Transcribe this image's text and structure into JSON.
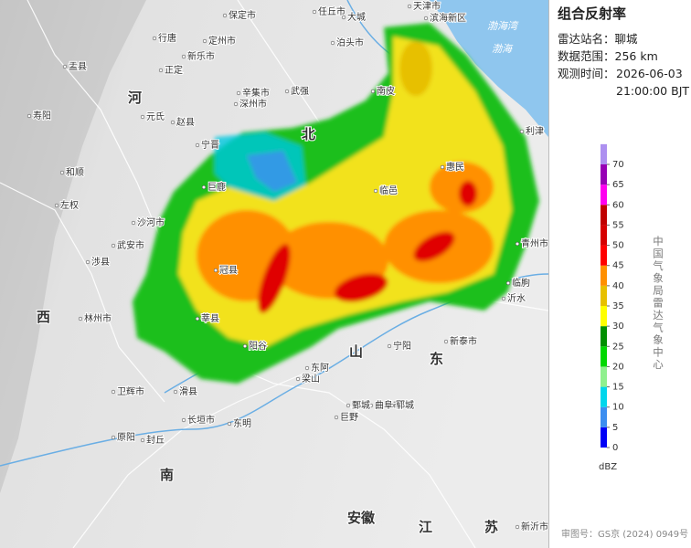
{
  "panel": {
    "title": "组合反射率",
    "station": "雷达站名：聊城",
    "range": "数据范围：256 km",
    "time_label": "观测时间：",
    "date": "2026-06-03",
    "time": "21:00:00 BJT"
  },
  "legend": {
    "ticks": [
      0,
      5,
      10,
      15,
      20,
      25,
      30,
      35,
      40,
      45,
      50,
      55,
      60,
      65,
      70
    ],
    "colors": [
      "#0000f6",
      "#3c8ef0",
      "#00d6ec",
      "#8ff08e",
      "#00d800",
      "#019000",
      "#ffff00",
      "#e7c000",
      "#ff9000",
      "#ff0000",
      "#d60000",
      "#c00000",
      "#ff00f0",
      "#9600b4",
      "#ad90f0"
    ],
    "unit": "dBZ",
    "agency": "中国气象局雷达气象中心"
  },
  "map": {
    "labels": [
      "天津市",
      "滨海新区",
      "保定市",
      "任丘市",
      "大城",
      "定州市",
      "行唐",
      "新乐市",
      "正定",
      "辛集市",
      "深州市",
      "武强",
      "泊头市",
      "南皮",
      "临邑",
      "惠民",
      "青州市",
      "临朐",
      "新泰市",
      "曲阜市",
      "郓城",
      "鄄城",
      "巨野",
      "东明",
      "长垣市",
      "封丘",
      "原阳",
      "卫辉市",
      "滑县",
      "林州市",
      "武安市",
      "沙河市",
      "巨鹿",
      "宁晋",
      "赵县",
      "元氏",
      "寿阳",
      "和顺",
      "左权",
      "涉县",
      "盂县",
      "冠县",
      "莘县",
      "阳谷",
      "东阿",
      "梁山",
      "宁阳",
      "利津",
      "沂水",
      "新沂市"
    ],
    "regions": [
      "北",
      "山",
      "东",
      "南",
      "河",
      "安徽",
      "江",
      "苏",
      "西"
    ],
    "seas": [
      "渤海湾",
      "渤海"
    ],
    "approval": "审图号：GS京 (2024) 0949号"
  }
}
